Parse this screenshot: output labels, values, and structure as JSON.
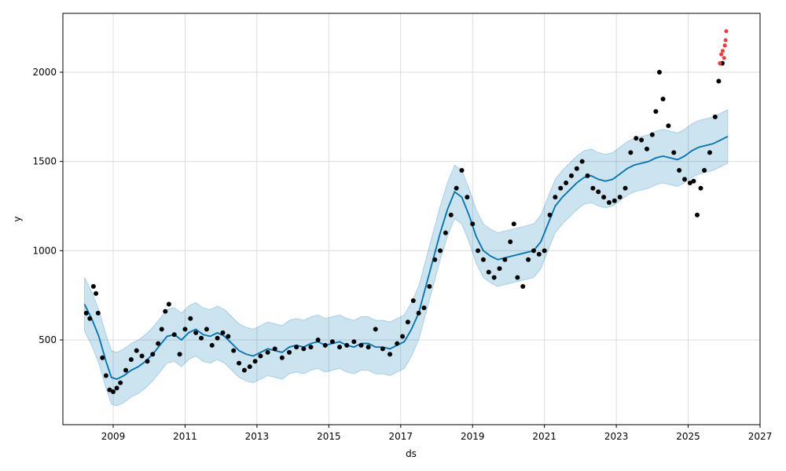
{
  "chart_data": {
    "type": "scatter",
    "title": "",
    "xlabel": "ds",
    "ylabel": "y",
    "xlim": [
      2007.6,
      2027.0
    ],
    "ylim": [
      25,
      2330
    ],
    "x_ticks": [
      "2009",
      "2011",
      "2013",
      "2015",
      "2017",
      "2019",
      "2021",
      "2023",
      "2025",
      "2027"
    ],
    "y_ticks": [
      500,
      1000,
      1500,
      2000
    ],
    "grid": true,
    "legend": "none",
    "colors": {
      "observed": "#000000",
      "outlier": "#ff3333",
      "forecast": "#0072b2",
      "band": "#0072b2"
    },
    "series": [
      {
        "role": "observed",
        "x": [
          2008.25,
          2008.35,
          2008.45,
          2008.52,
          2008.58,
          2008.7,
          2008.8,
          2008.9,
          2009.0,
          2009.1,
          2009.2,
          2009.35,
          2009.5,
          2009.65,
          2009.8,
          2009.95,
          2010.1,
          2010.25,
          2010.35,
          2010.45,
          2010.55,
          2010.7,
          2010.85,
          2011.0,
          2011.15,
          2011.3,
          2011.45,
          2011.6,
          2011.75,
          2011.9,
          2012.05,
          2012.2,
          2012.35,
          2012.5,
          2012.65,
          2012.8,
          2012.95,
          2013.1,
          2013.3,
          2013.5,
          2013.7,
          2013.9,
          2014.1,
          2014.3,
          2014.5,
          2014.7,
          2014.9,
          2015.1,
          2015.3,
          2015.5,
          2015.7,
          2015.9,
          2016.1,
          2016.3,
          2016.5,
          2016.7,
          2016.9,
          2017.05,
          2017.2,
          2017.35,
          2017.5,
          2017.65,
          2017.8,
          2017.95,
          2018.1,
          2018.25,
          2018.4,
          2018.55,
          2018.7,
          2018.85,
          2019.0,
          2019.15,
          2019.3,
          2019.45,
          2019.6,
          2019.75,
          2019.9,
          2020.05,
          2020.15,
          2020.25,
          2020.4,
          2020.55,
          2020.7,
          2020.85,
          2021.0,
          2021.15,
          2021.3,
          2021.45,
          2021.6,
          2021.75,
          2021.9,
          2022.05,
          2022.2,
          2022.35,
          2022.5,
          2022.65,
          2022.8,
          2022.95,
          2023.1,
          2023.25,
          2023.4,
          2023.55,
          2023.7,
          2023.85,
          2024.0,
          2024.1,
          2024.2,
          2024.3,
          2024.45,
          2024.6,
          2024.75,
          2024.9,
          2025.05,
          2025.15,
          2025.25,
          2025.35,
          2025.45,
          2025.6,
          2025.75,
          2025.85,
          2025.95
        ],
        "y": [
          650,
          620,
          800,
          760,
          650,
          400,
          300,
          220,
          210,
          230,
          260,
          330,
          390,
          440,
          410,
          380,
          420,
          480,
          560,
          660,
          700,
          530,
          420,
          560,
          620,
          540,
          510,
          560,
          470,
          510,
          540,
          520,
          440,
          370,
          330,
          350,
          380,
          410,
          430,
          450,
          400,
          430,
          460,
          450,
          460,
          500,
          470,
          490,
          460,
          470,
          490,
          470,
          460,
          560,
          450,
          420,
          480,
          520,
          600,
          720,
          650,
          680,
          800,
          950,
          1000,
          1100,
          1200,
          1350,
          1450,
          1300,
          1150,
          1000,
          950,
          880,
          850,
          900,
          950,
          1050,
          1150,
          850,
          800,
          950,
          1000,
          980,
          1000,
          1200,
          1300,
          1350,
          1380,
          1420,
          1460,
          1500,
          1420,
          1350,
          1330,
          1300,
          1270,
          1280,
          1300,
          1350,
          1550,
          1630,
          1620,
          1570,
          1650,
          1780,
          2000,
          1850,
          1700,
          1550,
          1450,
          1400,
          1380,
          1390,
          1200,
          1350,
          1450,
          1550,
          1750,
          1950,
          2050
        ]
      },
      {
        "role": "outlier",
        "x": [
          2025.88,
          2025.92,
          2025.96,
          2026.0,
          2026.02,
          2026.04,
          2026.06
        ],
        "y": [
          2050,
          2100,
          2120,
          2080,
          2150,
          2180,
          2230
        ]
      },
      {
        "role": "forecast",
        "x": [
          2008.2,
          2008.4,
          2008.6,
          2008.8,
          2008.95,
          2009.1,
          2009.3,
          2009.5,
          2009.7,
          2009.9,
          2010.1,
          2010.3,
          2010.5,
          2010.7,
          2010.9,
          2011.1,
          2011.3,
          2011.5,
          2011.7,
          2011.9,
          2012.1,
          2012.3,
          2012.5,
          2012.7,
          2012.9,
          2013.1,
          2013.3,
          2013.5,
          2013.7,
          2013.9,
          2014.1,
          2014.3,
          2014.5,
          2014.7,
          2014.9,
          2015.1,
          2015.3,
          2015.5,
          2015.7,
          2015.9,
          2016.1,
          2016.3,
          2016.5,
          2016.7,
          2016.9,
          2017.1,
          2017.3,
          2017.5,
          2017.7,
          2017.9,
          2018.1,
          2018.3,
          2018.5,
          2018.7,
          2018.9,
          2019.1,
          2019.3,
          2019.5,
          2019.7,
          2019.9,
          2020.1,
          2020.3,
          2020.5,
          2020.7,
          2020.9,
          2021.1,
          2021.3,
          2021.5,
          2021.7,
          2021.9,
          2022.1,
          2022.3,
          2022.5,
          2022.7,
          2022.9,
          2023.1,
          2023.3,
          2023.5,
          2023.7,
          2023.9,
          2024.1,
          2024.3,
          2024.5,
          2024.7,
          2024.9,
          2025.1,
          2025.3,
          2025.5,
          2025.7,
          2025.9,
          2026.1
        ],
        "y": [
          700,
          620,
          520,
          380,
          290,
          280,
          300,
          330,
          350,
          380,
          420,
          470,
          520,
          530,
          500,
          540,
          560,
          530,
          520,
          540,
          520,
          480,
          440,
          420,
          410,
          430,
          450,
          440,
          430,
          460,
          470,
          460,
          480,
          490,
          470,
          480,
          490,
          470,
          460,
          480,
          480,
          460,
          460,
          450,
          470,
          490,
          560,
          650,
          800,
          950,
          1100,
          1230,
          1330,
          1300,
          1200,
          1080,
          1000,
          970,
          950,
          960,
          970,
          980,
          990,
          1000,
          1050,
          1150,
          1250,
          1300,
          1340,
          1380,
          1410,
          1420,
          1400,
          1390,
          1400,
          1430,
          1460,
          1480,
          1490,
          1500,
          1520,
          1530,
          1520,
          1510,
          1530,
          1560,
          1580,
          1590,
          1600,
          1620,
          1640
        ]
      }
    ],
    "interval_halfwidth": 150
  }
}
